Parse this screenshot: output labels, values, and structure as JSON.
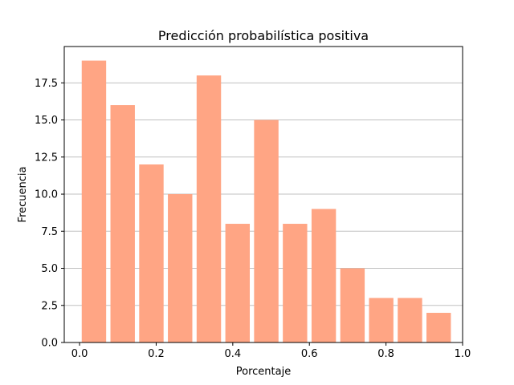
{
  "chart_data": {
    "type": "bar",
    "title": "Predicción probabilística positiva",
    "xlabel": "Porcentaje",
    "ylabel": "Frecuencia",
    "bins": [
      {
        "x_start": 0.0,
        "x_end": 0.075,
        "value": 19
      },
      {
        "x_start": 0.075,
        "x_end": 0.15,
        "value": 16
      },
      {
        "x_start": 0.15,
        "x_end": 0.225,
        "value": 12
      },
      {
        "x_start": 0.225,
        "x_end": 0.3,
        "value": 10
      },
      {
        "x_start": 0.3,
        "x_end": 0.375,
        "value": 18
      },
      {
        "x_start": 0.375,
        "x_end": 0.45,
        "value": 8
      },
      {
        "x_start": 0.45,
        "x_end": 0.525,
        "value": 15
      },
      {
        "x_start": 0.525,
        "x_end": 0.6,
        "value": 8
      },
      {
        "x_start": 0.6,
        "x_end": 0.675,
        "value": 9
      },
      {
        "x_start": 0.675,
        "x_end": 0.75,
        "value": 5
      },
      {
        "x_start": 0.75,
        "x_end": 0.825,
        "value": 3
      },
      {
        "x_start": 0.825,
        "x_end": 0.9,
        "value": 3
      },
      {
        "x_start": 0.9,
        "x_end": 0.975,
        "value": 2
      }
    ],
    "xlim": [
      -0.04,
      1.0
    ],
    "ylim": [
      0,
      19.95
    ],
    "xticks": [
      "0.0",
      "0.2",
      "0.4",
      "0.6",
      "0.8",
      "1.0"
    ],
    "xtick_values": [
      0.0,
      0.2,
      0.4,
      0.6,
      0.8,
      1.0
    ],
    "yticks": [
      "0.0",
      "2.5",
      "5.0",
      "7.5",
      "10.0",
      "12.5",
      "15.0",
      "17.5"
    ],
    "ytick_values": [
      0.0,
      2.5,
      5.0,
      7.5,
      10.0,
      12.5,
      15.0,
      17.5
    ],
    "grid": "horizontal",
    "bar_color": "#FFA584",
    "grid_color": "#c0c0c0"
  }
}
